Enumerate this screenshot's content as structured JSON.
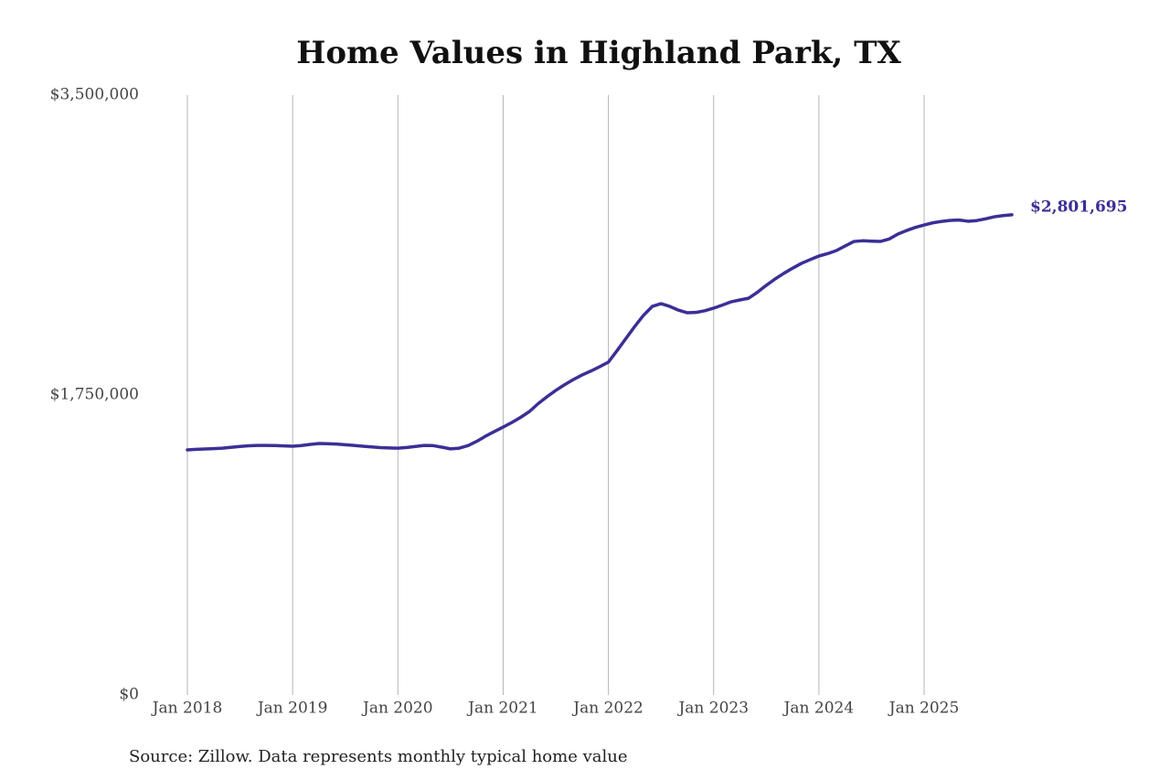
{
  "chart_data": {
    "type": "line",
    "title": "Home Values in Highland Park, TX",
    "source": "Source: Zillow. Data represents monthly typical home value",
    "x": [
      "2018-01",
      "2018-02",
      "2018-03",
      "2018-04",
      "2018-05",
      "2018-06",
      "2018-07",
      "2018-08",
      "2018-09",
      "2018-10",
      "2018-11",
      "2018-12",
      "2019-01",
      "2019-02",
      "2019-03",
      "2019-04",
      "2019-05",
      "2019-06",
      "2019-07",
      "2019-08",
      "2019-09",
      "2019-10",
      "2019-11",
      "2019-12",
      "2020-01",
      "2020-02",
      "2020-03",
      "2020-04",
      "2020-05",
      "2020-06",
      "2020-07",
      "2020-08",
      "2020-09",
      "2020-10",
      "2020-11",
      "2020-12",
      "2021-01",
      "2021-02",
      "2021-03",
      "2021-04",
      "2021-05",
      "2021-06",
      "2021-07",
      "2021-08",
      "2021-09",
      "2021-10",
      "2021-11",
      "2021-12",
      "2022-01",
      "2022-02",
      "2022-03",
      "2022-04",
      "2022-05",
      "2022-06",
      "2022-07",
      "2022-08",
      "2022-09",
      "2022-10",
      "2022-11",
      "2022-12",
      "2023-01",
      "2023-02",
      "2023-03",
      "2023-04",
      "2023-05",
      "2023-06",
      "2023-07",
      "2023-08",
      "2023-09",
      "2023-10",
      "2023-11",
      "2023-12",
      "2024-01",
      "2024-02",
      "2024-03",
      "2024-04",
      "2024-05",
      "2024-06",
      "2024-07",
      "2024-08",
      "2024-09",
      "2024-10",
      "2024-11",
      "2024-12",
      "2025-01",
      "2025-02",
      "2025-03",
      "2025-04",
      "2025-05",
      "2025-06",
      "2025-07",
      "2025-08",
      "2025-09",
      "2025-10",
      "2025-11"
    ],
    "series": [
      {
        "color": "#3b2f96",
        "values": [
          1430000,
          1433000,
          1435000,
          1437000,
          1440000,
          1445000,
          1450000,
          1454000,
          1456000,
          1456000,
          1455000,
          1453000,
          1451000,
          1455000,
          1462000,
          1467000,
          1466000,
          1464000,
          1460000,
          1456000,
          1451000,
          1447000,
          1443000,
          1441000,
          1440000,
          1444000,
          1450000,
          1456000,
          1455000,
          1446000,
          1436000,
          1440000,
          1455000,
          1480000,
          1510000,
          1537000,
          1563000,
          1590000,
          1620000,
          1654000,
          1700000,
          1740000,
          1777000,
          1810000,
          1840000,
          1867000,
          1890000,
          1915000,
          1942000,
          2010000,
          2080000,
          2150000,
          2215000,
          2267000,
          2283000,
          2267000,
          2245000,
          2230000,
          2232000,
          2242000,
          2257000,
          2275000,
          2294000,
          2305000,
          2315000,
          2350000,
          2390000,
          2427000,
          2460000,
          2490000,
          2518000,
          2540000,
          2561000,
          2575000,
          2593000,
          2620000,
          2646000,
          2650000,
          2648000,
          2646000,
          2660000,
          2689000,
          2710000,
          2728000,
          2742000,
          2755000,
          2763000,
          2769000,
          2771000,
          2764000,
          2768000,
          2778000,
          2790000,
          2797000,
          2801695
        ]
      }
    ],
    "annotation": "$2,801,695",
    "xlim": [
      "2018-01",
      "2025-11"
    ],
    "xticks": [
      {
        "value": "2018-01",
        "label": "Jan 2018"
      },
      {
        "value": "2019-01",
        "label": "Jan 2019"
      },
      {
        "value": "2020-01",
        "label": "Jan 2020"
      },
      {
        "value": "2021-01",
        "label": "Jan 2021"
      },
      {
        "value": "2022-01",
        "label": "Jan 2022"
      },
      {
        "value": "2023-01",
        "label": "Jan 2023"
      },
      {
        "value": "2024-01",
        "label": "Jan 2024"
      },
      {
        "value": "2025-01",
        "label": "Jan 2025"
      }
    ],
    "ylim": [
      0,
      3500000
    ],
    "yticks": [
      {
        "value": 0,
        "label": "$0"
      },
      {
        "value": 1750000,
        "label": "$1,750,000"
      },
      {
        "value": 3500000,
        "label": "$3,500,000"
      }
    ],
    "grid": true
  }
}
